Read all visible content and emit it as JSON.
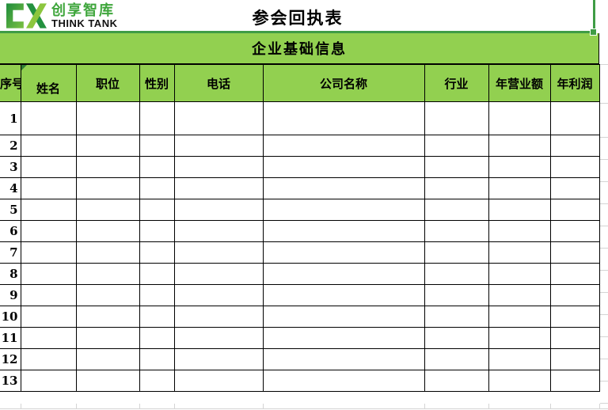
{
  "logo": {
    "brand_cn": "创享智库",
    "brand_en": "THINK TANK"
  },
  "title": "参会回执表",
  "section_header": "企业基础信息",
  "table": {
    "columns": [
      {
        "id": "xuhao",
        "label": "序号"
      },
      {
        "id": "xingming",
        "label": "姓名"
      },
      {
        "id": "zhiwei",
        "label": "职位"
      },
      {
        "id": "xingbie",
        "label": "性别"
      },
      {
        "id": "dianhua",
        "label": "电话"
      },
      {
        "id": "gongsi",
        "label": "公司名称"
      },
      {
        "id": "hangye",
        "label": "行业"
      },
      {
        "id": "yingyee",
        "label": "年营业额"
      },
      {
        "id": "lirun",
        "label": "年利润"
      }
    ],
    "rows": [
      {
        "no": "1",
        "cells": [
          "",
          "",
          "",
          "",
          "",
          "",
          "",
          ""
        ]
      },
      {
        "no": "2",
        "cells": [
          "",
          "",
          "",
          "",
          "",
          "",
          "",
          ""
        ]
      },
      {
        "no": "3",
        "cells": [
          "",
          "",
          "",
          "",
          "",
          "",
          "",
          ""
        ]
      },
      {
        "no": "4",
        "cells": [
          "",
          "",
          "",
          "",
          "",
          "",
          "",
          ""
        ]
      },
      {
        "no": "5",
        "cells": [
          "",
          "",
          "",
          "",
          "",
          "",
          "",
          ""
        ]
      },
      {
        "no": "6",
        "cells": [
          "",
          "",
          "",
          "",
          "",
          "",
          "",
          ""
        ]
      },
      {
        "no": "7",
        "cells": [
          "",
          "",
          "",
          "",
          "",
          "",
          "",
          ""
        ]
      },
      {
        "no": "8",
        "cells": [
          "",
          "",
          "",
          "",
          "",
          "",
          "",
          ""
        ]
      },
      {
        "no": "9",
        "cells": [
          "",
          "",
          "",
          "",
          "",
          "",
          "",
          ""
        ]
      },
      {
        "no": "10",
        "cells": [
          "",
          "",
          "",
          "",
          "",
          "",
          "",
          ""
        ]
      },
      {
        "no": "11",
        "cells": [
          "",
          "",
          "",
          "",
          "",
          "",
          "",
          ""
        ]
      },
      {
        "no": "12",
        "cells": [
          "",
          "",
          "",
          "",
          "",
          "",
          "",
          ""
        ]
      },
      {
        "no": "13",
        "cells": [
          "",
          "",
          "",
          "",
          "",
          "",
          "",
          ""
        ]
      }
    ]
  },
  "colors": {
    "band_green": "#92D050",
    "selection_green": "#3F9C45",
    "gridline_gray": "#D4D4D4",
    "logo_green": "#3FA63C",
    "border_black": "#000000"
  }
}
